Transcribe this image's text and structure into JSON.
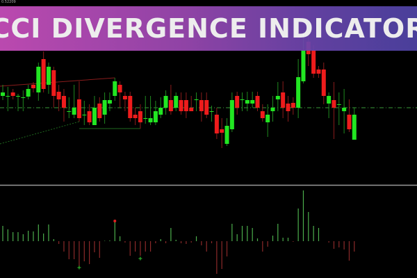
{
  "banner": {
    "title": "CCI DIVERGENCE INDICATOR"
  },
  "price_label": "0.52209",
  "colors": {
    "bull": "#22e622",
    "bear": "#ee1c1c",
    "hist_pos": "#4cae4c",
    "hist_neg": "#8c2a2a",
    "level_line": "#3a9a3a",
    "separator": "#9a9a9a",
    "banner_start": "#c94fbd",
    "banner_end": "#4f44a6"
  },
  "chart_data": {
    "type": "candlestick",
    "candles_ohlc": [
      [
        112,
        128,
        106,
        117
      ],
      [
        112,
        125,
        90,
        112
      ],
      [
        117,
        122,
        107,
        112
      ],
      [
        112,
        115,
        90,
        112
      ],
      [
        110,
        120,
        90,
        110
      ],
      [
        111,
        128,
        107,
        122
      ],
      [
        128,
        132,
        117,
        123
      ],
      [
        117,
        160,
        105,
        154
      ],
      [
        165,
        176,
        117,
        122
      ],
      [
        128,
        160,
        115,
        154
      ],
      [
        149,
        154,
        95,
        112
      ],
      [
        118,
        128,
        90,
        107
      ],
      [
        112,
        122,
        75,
        95
      ],
      [
        90,
        110,
        80,
        90
      ],
      [
        85,
        128,
        80,
        95
      ],
      [
        107,
        133,
        75,
        80
      ],
      [
        85,
        105,
        70,
        85
      ],
      [
        90,
        100,
        70,
        74
      ],
      [
        70,
        112,
        70,
        95
      ],
      [
        101,
        110,
        75,
        80
      ],
      [
        85,
        117,
        72,
        106
      ],
      [
        101,
        117,
        90,
        106
      ],
      [
        112,
        138,
        105,
        133
      ],
      [
        128,
        133,
        95,
        117
      ],
      [
        112,
        118,
        90,
        107
      ],
      [
        112,
        118,
        75,
        80
      ],
      [
        85,
        95,
        70,
        80
      ],
      [
        90,
        100,
        65,
        74
      ],
      [
        80,
        112,
        72,
        80
      ],
      [
        74,
        112,
        70,
        80
      ],
      [
        74,
        105,
        70,
        90
      ],
      [
        85,
        110,
        80,
        95
      ],
      [
        95,
        120,
        85,
        112
      ],
      [
        106,
        128,
        85,
        90
      ],
      [
        95,
        117,
        90,
        112
      ],
      [
        106,
        117,
        85,
        90
      ],
      [
        106,
        117,
        80,
        90
      ],
      [
        95,
        112,
        90,
        90
      ],
      [
        107,
        117,
        90,
        107
      ],
      [
        106,
        117,
        75,
        90
      ],
      [
        106,
        117,
        80,
        85
      ],
      [
        90,
        98,
        75,
        90
      ],
      [
        85,
        95,
        50,
        58
      ],
      [
        64,
        80,
        37,
        59
      ],
      [
        43,
        80,
        40,
        69
      ],
      [
        64,
        117,
        60,
        106
      ],
      [
        112,
        118,
        85,
        95
      ],
      [
        107,
        117,
        90,
        107
      ],
      [
        101,
        118,
        90,
        106
      ],
      [
        101,
        118,
        95,
        106
      ],
      [
        112,
        118,
        90,
        95
      ],
      [
        90,
        100,
        75,
        80
      ],
      [
        74,
        100,
        53,
        85
      ],
      [
        90,
        112,
        75,
        95
      ],
      [
        107,
        132,
        90,
        112
      ],
      [
        117,
        133,
        80,
        95
      ],
      [
        101,
        112,
        75,
        90
      ],
      [
        102,
        110,
        85,
        95
      ],
      [
        95,
        165,
        80,
        139
      ],
      [
        133,
        205,
        130,
        178
      ],
      [
        190,
        200,
        155,
        172
      ],
      [
        178,
        185,
        138,
        144
      ],
      [
        150,
        155,
        138,
        144
      ],
      [
        150,
        160,
        100,
        112
      ],
      [
        101,
        117,
        80,
        112
      ],
      [
        106,
        132,
        50,
        95
      ],
      [
        100,
        117,
        70,
        100
      ],
      [
        90,
        122,
        58,
        95
      ],
      [
        85,
        107,
        60,
        64
      ],
      [
        49,
        95,
        49,
        85
      ]
    ],
    "level": 95,
    "cci_histogram": [
      22,
      17,
      13,
      13,
      10,
      15,
      14,
      24,
      11,
      24,
      3,
      -4,
      -15,
      -26,
      -26,
      -38,
      -29,
      -33,
      -16,
      -24,
      0.5,
      1,
      28,
      7,
      -2,
      -21,
      -15,
      -21,
      -15,
      -15,
      -3,
      3,
      -3,
      19,
      2,
      -3,
      -4,
      -2,
      7,
      -6,
      -15,
      -3,
      -47,
      -40,
      -22,
      25,
      10,
      22,
      22,
      19,
      4,
      -15,
      -8,
      8,
      25,
      5,
      5,
      -1,
      47,
      73,
      42,
      22,
      19,
      0,
      -2,
      -11,
      -9,
      -12,
      -28,
      -15
    ],
    "divergence_markers": [
      {
        "index": 22,
        "type": "bearish"
      },
      {
        "index": 15,
        "type": "bullish"
      },
      {
        "index": 27,
        "type": "bullish"
      }
    ],
    "trend_lines": [
      {
        "type": "bearish",
        "from_index": 0,
        "to_index": 22
      },
      {
        "type": "bullish",
        "from_index": 0,
        "to_index": 15
      },
      {
        "type": "bullish",
        "from_index": 15,
        "to_index": 27
      }
    ]
  }
}
